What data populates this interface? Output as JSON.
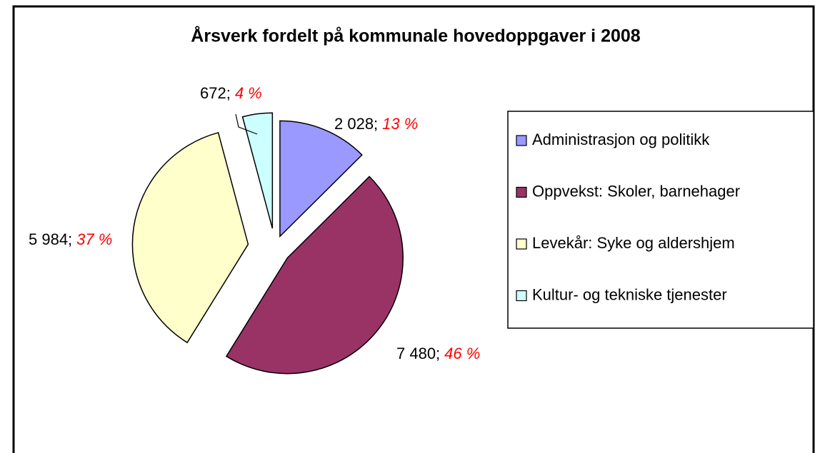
{
  "chart_data": {
    "type": "pie",
    "title": "Årsverk fordelt på kommunale hovedoppgaver i 2008",
    "categories": [
      "Administrasjon og politikk",
      "Oppvekst: Skoler, barnehager",
      "Levekår: Syke og aldershjem",
      "Kultur- og tekniske tjenester"
    ],
    "values": [
      2028,
      7480,
      5984,
      672
    ],
    "value_labels": [
      "2 028;",
      "7 480;",
      "5 984;",
      "672;"
    ],
    "percentages": [
      13,
      46,
      37,
      4
    ],
    "percentage_labels": [
      "13 %",
      "46 %",
      "37 %",
      "4 %"
    ],
    "colors": [
      "#9999ff",
      "#993366",
      "#ffffcc",
      "#ccffff"
    ],
    "legend": "right"
  }
}
